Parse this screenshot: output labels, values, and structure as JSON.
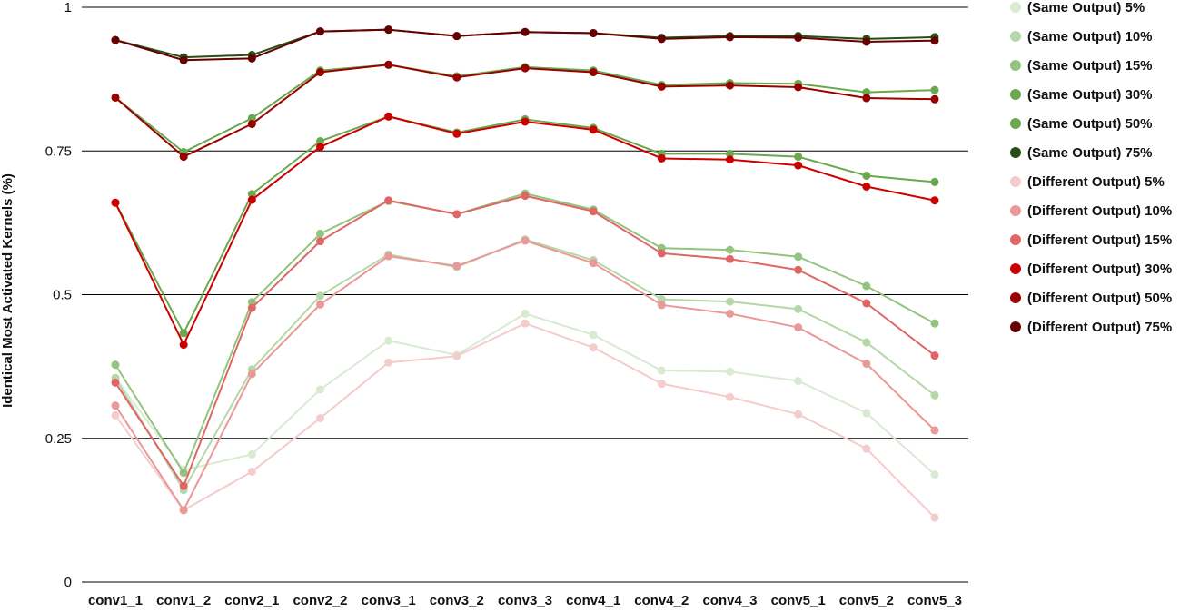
{
  "chart_data": {
    "type": "line",
    "title": "",
    "xlabel": "",
    "ylabel": "Identical Most Activated Kernels (%)",
    "ylim": [
      0,
      1
    ],
    "y_ticks": [
      {
        "value": 0,
        "label": "0"
      },
      {
        "value": 0.25,
        "label": "0.25"
      },
      {
        "value": 0.5,
        "label": "0.5"
      },
      {
        "value": 0.75,
        "label": "0.75"
      },
      {
        "value": 1,
        "label": "1"
      }
    ],
    "grid": true,
    "legend_position": "right",
    "categories": [
      "conv1_1",
      "conv1_2",
      "conv2_1",
      "conv2_2",
      "conv3_1",
      "conv3_2",
      "conv3_3",
      "conv4_1",
      "conv4_2",
      "conv4_3",
      "conv5_1",
      "conv5_2",
      "conv5_3"
    ],
    "series": [
      {
        "name": "(Same Output) 5%",
        "color": "#d9ead3",
        "values": [
          0.355,
          0.195,
          0.222,
          0.335,
          0.42,
          0.395,
          0.467,
          0.43,
          0.368,
          0.366,
          0.35,
          0.294,
          0.187
        ]
      },
      {
        "name": "(Same Output) 10%",
        "color": "#b6d7a8",
        "values": [
          0.355,
          0.16,
          0.37,
          0.498,
          0.57,
          0.548,
          0.596,
          0.56,
          0.492,
          0.488,
          0.475,
          0.417,
          0.325
        ]
      },
      {
        "name": "(Same Output) 15%",
        "color": "#93c47d",
        "values": [
          0.378,
          0.19,
          0.487,
          0.606,
          0.663,
          0.64,
          0.676,
          0.648,
          0.581,
          0.578,
          0.566,
          0.515,
          0.45
        ]
      },
      {
        "name": "(Same Output) 30%",
        "color": "#6aa84f",
        "values": [
          0.66,
          0.433,
          0.675,
          0.767,
          0.81,
          0.782,
          0.805,
          0.79,
          0.745,
          0.745,
          0.74,
          0.707,
          0.696
        ]
      },
      {
        "name": "(Same Output) 50%",
        "color": "#6aa84f",
        "values": [
          0.843,
          0.748,
          0.807,
          0.89,
          0.9,
          0.88,
          0.896,
          0.89,
          0.865,
          0.868,
          0.867,
          0.852,
          0.856
        ]
      },
      {
        "name": "(Same Output) 75%",
        "color": "#274e13",
        "values": [
          0.943,
          0.913,
          0.917,
          0.958,
          0.961,
          0.95,
          0.957,
          0.955,
          0.947,
          0.95,
          0.95,
          0.945,
          0.948
        ]
      },
      {
        "name": "(Different Output) 5%",
        "color": "#f4cccc",
        "values": [
          0.29,
          0.125,
          0.192,
          0.285,
          0.382,
          0.393,
          0.45,
          0.408,
          0.345,
          0.322,
          0.292,
          0.232,
          0.112
        ]
      },
      {
        "name": "(Different Output) 10%",
        "color": "#ea9999",
        "values": [
          0.307,
          0.125,
          0.362,
          0.483,
          0.567,
          0.55,
          0.594,
          0.555,
          0.482,
          0.467,
          0.443,
          0.38,
          0.264
        ]
      },
      {
        "name": "(Different Output) 15%",
        "color": "#e06666",
        "values": [
          0.347,
          0.167,
          0.477,
          0.593,
          0.664,
          0.64,
          0.672,
          0.645,
          0.572,
          0.562,
          0.543,
          0.485,
          0.394
        ]
      },
      {
        "name": "(Different Output) 30%",
        "color": "#cc0000",
        "values": [
          0.66,
          0.413,
          0.665,
          0.757,
          0.81,
          0.78,
          0.801,
          0.787,
          0.737,
          0.735,
          0.725,
          0.688,
          0.664
        ]
      },
      {
        "name": "(Different Output) 50%",
        "color": "#990000",
        "values": [
          0.843,
          0.74,
          0.797,
          0.887,
          0.9,
          0.878,
          0.894,
          0.887,
          0.862,
          0.864,
          0.861,
          0.842,
          0.84
        ]
      },
      {
        "name": "(Different Output) 75%",
        "color": "#660000",
        "values": [
          0.943,
          0.908,
          0.911,
          0.958,
          0.961,
          0.95,
          0.957,
          0.955,
          0.945,
          0.948,
          0.947,
          0.94,
          0.942
        ]
      }
    ]
  }
}
